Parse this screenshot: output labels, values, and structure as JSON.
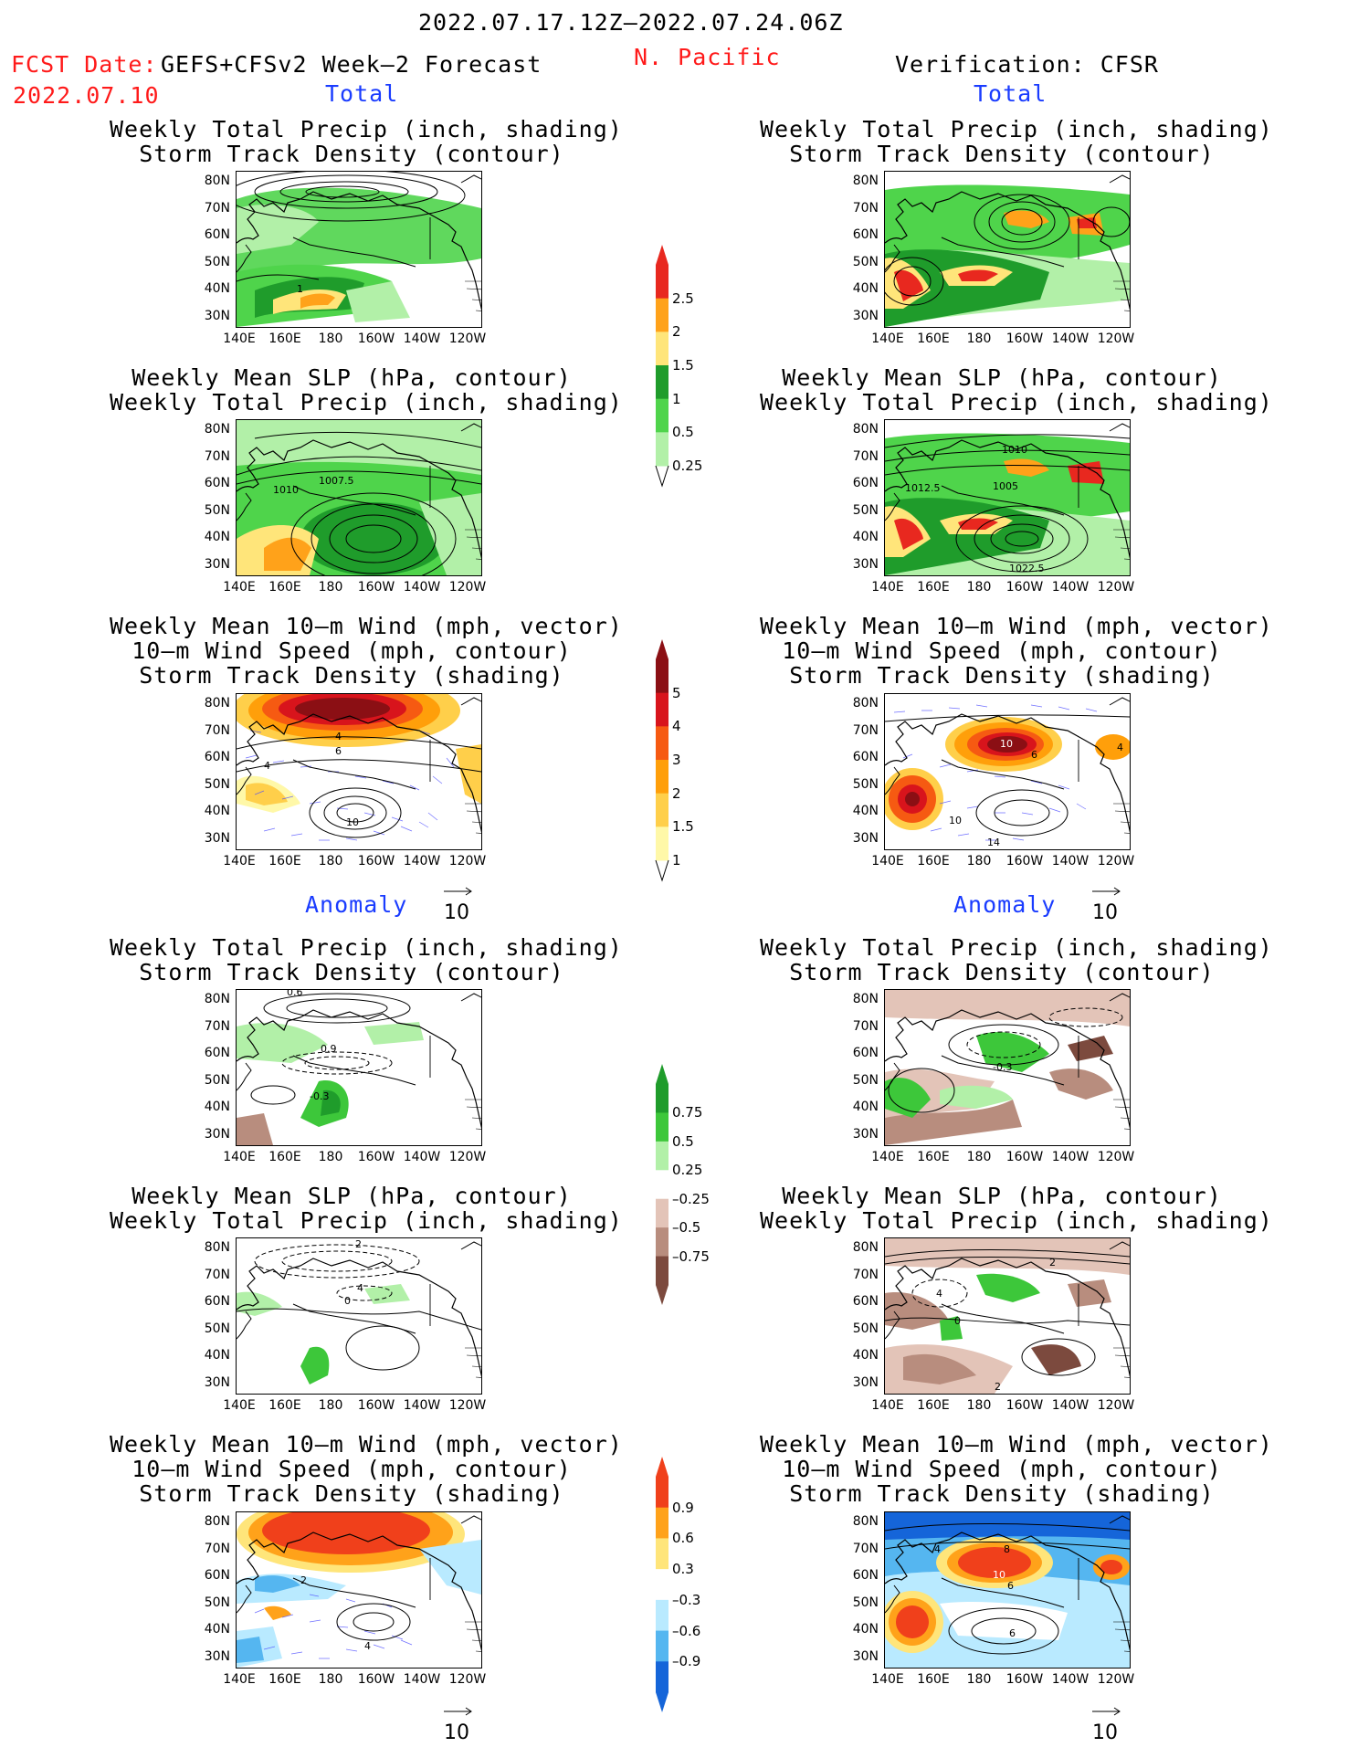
{
  "header": {
    "date_range": "2022.07.17.12Z–2022.07.24.06Z",
    "fcst_date_label": "FCST Date:",
    "fcst_date": "2022.07.10",
    "forecast_name": "GEFS+CFSv2 Week–2 Forecast",
    "region": "N. Pacific",
    "verification": "Verification: CFSR"
  },
  "sections": {
    "total": "Total",
    "anomaly": "Anomaly"
  },
  "panel_titles": {
    "precip_storm": [
      "Weekly Total Precip (inch, shading)",
      "Storm Track Density (contour)"
    ],
    "slp_precip": [
      "Weekly Mean SLP (hPa, contour)",
      "Weekly Total Precip (inch, shading)"
    ],
    "wind_storm": [
      "Weekly Mean 10–m Wind (mph, vector)",
      "10–m Wind Speed (mph, contour)",
      "Storm Track Density (shading)"
    ]
  },
  "axes": {
    "lat_labels": [
      "80N",
      "70N",
      "60N",
      "50N",
      "40N",
      "30N"
    ],
    "lon_labels": [
      "140E",
      "160E",
      "180",
      "160W",
      "140W",
      "120W"
    ]
  },
  "contour_labels": {
    "fc_total_precip": [
      "1"
    ],
    "fc_total_slp": [
      "1010",
      "1007.5"
    ],
    "fc_total_wind": [
      "4",
      "6",
      "4",
      "10"
    ],
    "vf_total_slp": [
      "1012.5",
      "1005",
      "1010",
      "1022.5"
    ],
    "vf_total_wind": [
      "10",
      "6",
      "10",
      "14",
      "4"
    ],
    "fc_anom_precip": [
      "0.6",
      "0.9",
      "-0.3"
    ],
    "fc_anom_slp": [
      "2",
      "4",
      "0"
    ],
    "fc_anom_wind": [
      "2",
      "4"
    ],
    "vf_anom_precip": [
      "-0.3"
    ],
    "vf_anom_slp": [
      "2",
      "4",
      "0",
      "2"
    ],
    "vf_anom_wind": [
      "4",
      "8",
      "10",
      "6",
      "6"
    ]
  },
  "vector_reference": "10",
  "colorbars": {
    "precip_total": {
      "labels": [
        "2.5",
        "2",
        "1.5",
        "1",
        "0.5",
        "0.25"
      ],
      "colors": [
        "#e8281f",
        "#ffa21a",
        "#ffe57a",
        "#1f9c2b",
        "#4fd44b",
        "#b2f0a8"
      ]
    },
    "storm_total": {
      "labels": [
        "5",
        "4",
        "3",
        "2",
        "1.5",
        "1"
      ],
      "colors": [
        "#8b0f14",
        "#d8141c",
        "#f65a12",
        "#ff9f0a",
        "#ffcf4a",
        "#fff8a8"
      ]
    },
    "precip_anom": {
      "labels": [
        "0.75",
        "0.5",
        "0.25",
        "–0.25",
        "–0.5",
        "–0.75"
      ],
      "colors": [
        "#1f9c2b",
        "#3dc73a",
        "#b2f0a8",
        "#ffffff",
        "#e3c4b8",
        "#b88d7e",
        "#7c4a3e"
      ]
    },
    "storm_anom": {
      "labels": [
        "0.9",
        "0.6",
        "0.3",
        "–0.3",
        "–0.6",
        "–0.9"
      ],
      "colors": [
        "#f0401b",
        "#ffa21a",
        "#ffe57a",
        "#ffffff",
        "#b9eaff",
        "#55b6f0",
        "#1565d9"
      ]
    }
  }
}
